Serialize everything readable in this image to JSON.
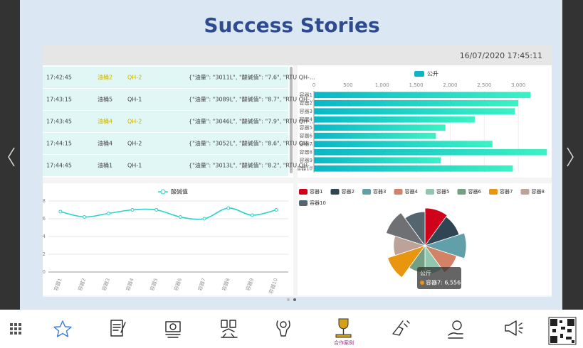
{
  "header": {
    "title": "Success Stories"
  },
  "dashboard": {
    "timestamp": "16/07/2020 17:45:11",
    "log_table": {
      "rows": [
        [
          "17:42:45",
          "油桶2",
          "QH-2",
          "{\"油量\": \"3011L\", \"酸碱值\": \"7.6\", \"RTU QH-..."
        ],
        [
          "17:43:15",
          "油桶5",
          "QH-1",
          "{\"油量\": \"3089L\", \"酸碱值\": \"8.7\", \"RTU QH-..."
        ],
        [
          "17:43:45",
          "油桶4",
          "QH-2",
          "{\"油量\": \"3046L\", \"酸碱值\": \"7.9\", \"RTU QH-..."
        ],
        [
          "17:44:15",
          "油桶4",
          "QH-2",
          "{\"油量\": \"3052L\", \"酸碱值\": \"8.6\", \"RTU QH-..."
        ],
        [
          "17:44:45",
          "油桶1",
          "QH-1",
          "{\"油量\": \"3013L\", \"酸碱值\": \"8.2\", \"RTU QH-..."
        ]
      ],
      "highlighted": [
        true,
        false,
        true,
        false,
        false
      ]
    }
  },
  "chart_data": [
    {
      "type": "hbar",
      "categories": [
        "容器1",
        "容器2",
        "容器3",
        "容器4",
        "容器5",
        "容器6",
        "容器7",
        "容器8",
        "容器9",
        "容器10"
      ],
      "series": [
        {
          "name": "公升",
          "color": "#0ab6c6",
          "values": [
            3180,
            3000,
            2950,
            2360,
            1930,
            1790,
            2620,
            3420,
            1860,
            2920
          ]
        }
      ],
      "xlim": [
        0,
        3500
      ],
      "xticks": [
        0,
        500,
        {
          "value": 1000,
          "label": "1,000"
        },
        {
          "value": 1500,
          "label": "1,500"
        },
        {
          "value": 2000,
          "label": "2,000"
        },
        {
          "value": 2500,
          "label": "2,500"
        },
        {
          "value": 3000,
          "label": "3,000"
        }
      ],
      "grid": true
    },
    {
      "type": "line",
      "categories": [
        "容器1",
        "容器2",
        "容器3",
        "容器4",
        "容器5",
        "容器6",
        "容器7",
        "容器8",
        "容器9",
        "容器10"
      ],
      "series": [
        {
          "name": "酸碱值",
          "color": "#2ad2c9",
          "values": [
            6.8,
            6.2,
            6.6,
            7.0,
            7.0,
            6.2,
            6.0,
            7.2,
            6.4,
            7.0
          ]
        }
      ],
      "ylim": [
        0,
        8
      ],
      "yticks": [
        0,
        2,
        4,
        6,
        8
      ],
      "grid": true,
      "smooth": true
    },
    {
      "type": "pie",
      "rose": true,
      "categories": [
        "容器1",
        "容器2",
        "容器3",
        "容器4",
        "容器5",
        "容器6",
        "容器7",
        "容器8",
        "容器9",
        "容器10"
      ],
      "values": [
        6200,
        5800,
        7000,
        5200,
        4200,
        3800,
        6556,
        4800,
        6900,
        5400
      ],
      "colors": [
        "#d0021b",
        "#2f4554",
        "#61a0a8",
        "#d48265",
        "#91c7ae",
        "#749f83",
        "#e8950f",
        "#bda29a",
        "#6e7074",
        "#546570"
      ],
      "tooltip": {
        "title": "公斤",
        "label": "容器7: 6,556"
      }
    }
  ],
  "nav": {
    "active_label": "合作案例"
  }
}
